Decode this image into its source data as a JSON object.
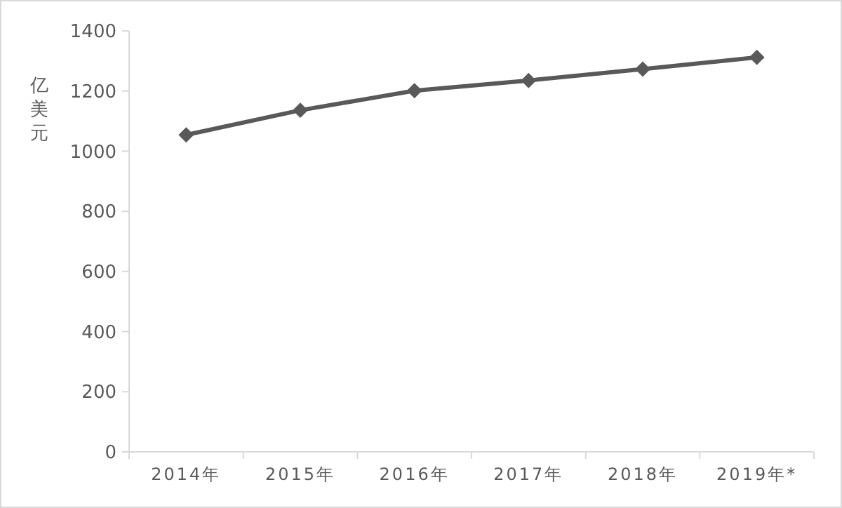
{
  "chart_data": {
    "type": "line",
    "ylabel": "亿美元",
    "categories": [
      "2014年",
      "2015年",
      "2016年",
      "2017年",
      "2018年",
      "2019年*"
    ],
    "series": [
      {
        "color": "#595959",
        "values": [
          1054,
          1136,
          1201,
          1235,
          1273,
          1312
        ]
      }
    ],
    "ylim": [
      0,
      1400
    ],
    "yticks": [
      0,
      200,
      400,
      600,
      800,
      1000,
      1200,
      1400
    ],
    "grid": false,
    "marker": "diamond",
    "line_style": "solid"
  }
}
